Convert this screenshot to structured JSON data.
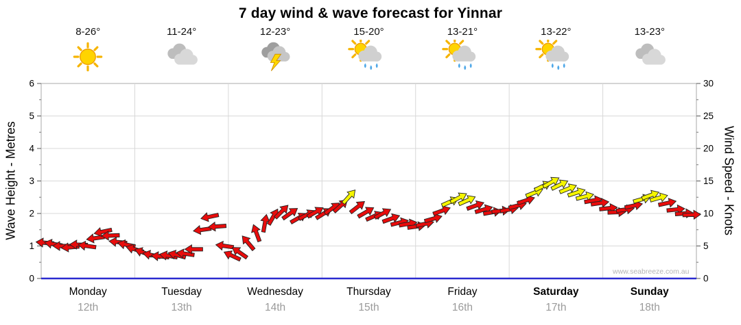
{
  "title": "7 day wind & wave forecast for Yinnar",
  "watermark": "www.seabreeze.com.au",
  "axes": {
    "left_title": "Wave Height - Metres",
    "right_title": "Wind Speed - Knots",
    "left_ticks": [
      0,
      1,
      2,
      3,
      4,
      5,
      6
    ],
    "right_ticks": [
      0,
      5,
      10,
      15,
      20,
      25,
      30
    ]
  },
  "days": [
    {
      "name": "Monday",
      "date": "12th",
      "temp": "8-26°",
      "icon": "sunny",
      "bold": false
    },
    {
      "name": "Tuesday",
      "date": "13th",
      "temp": "11-24°",
      "icon": "cloudy",
      "bold": false
    },
    {
      "name": "Wednesday",
      "date": "14th",
      "temp": "12-23°",
      "icon": "storm",
      "bold": false
    },
    {
      "name": "Thursday",
      "date": "15th",
      "temp": "15-20°",
      "icon": "sun-showers",
      "bold": false
    },
    {
      "name": "Friday",
      "date": "16th",
      "temp": "13-21°",
      "icon": "sun-showers",
      "bold": false
    },
    {
      "name": "Saturday",
      "date": "17th",
      "temp": "13-22°",
      "icon": "sun-showers",
      "bold": true
    },
    {
      "name": "Sunday",
      "date": "18th",
      "temp": "13-23°",
      "icon": "cloudy",
      "bold": true
    }
  ],
  "chart_data": {
    "type": "scatter",
    "marker": "wind-arrow",
    "x_unit": "days (0 = start of Monday, 7 = end of Sunday)",
    "y_units": {
      "wave_metres": [
        0,
        6
      ],
      "wind_knots": [
        0,
        30
      ]
    },
    "grid": true,
    "colors": {
      "r": "#e80c0c",
      "y": "#f5f500",
      "baseline": "#2a2ad0",
      "grid": "#d8d8d8",
      "border": "#a8a8a8"
    },
    "points": [
      {
        "d": 0.04,
        "kn": 5.5,
        "rot": 185,
        "c": "r"
      },
      {
        "d": 0.13,
        "kn": 5.3,
        "rot": 190,
        "c": "r"
      },
      {
        "d": 0.22,
        "kn": 5.0,
        "rot": 180,
        "c": "r"
      },
      {
        "d": 0.31,
        "kn": 4.8,
        "rot": 175,
        "c": "r"
      },
      {
        "d": 0.4,
        "kn": 5.2,
        "rot": 182,
        "c": "r"
      },
      {
        "d": 0.49,
        "kn": 5.0,
        "rot": 188,
        "c": "r"
      },
      {
        "d": 0.58,
        "kn": 6.2,
        "rot": 172,
        "c": "r"
      },
      {
        "d": 0.66,
        "kn": 7.2,
        "rot": 168,
        "c": "r"
      },
      {
        "d": 0.74,
        "kn": 6.6,
        "rot": 178,
        "c": "r"
      },
      {
        "d": 0.82,
        "kn": 5.6,
        "rot": 186,
        "c": "r"
      },
      {
        "d": 0.91,
        "kn": 5.2,
        "rot": 192,
        "c": "r"
      },
      {
        "d": 1.0,
        "kn": 4.5,
        "rot": 196,
        "c": "r"
      },
      {
        "d": 1.09,
        "kn": 4.0,
        "rot": 200,
        "c": "r"
      },
      {
        "d": 1.18,
        "kn": 3.6,
        "rot": 192,
        "c": "r"
      },
      {
        "d": 1.27,
        "kn": 3.4,
        "rot": 186,
        "c": "r"
      },
      {
        "d": 1.36,
        "kn": 3.5,
        "rot": 190,
        "c": "r"
      },
      {
        "d": 1.45,
        "kn": 3.6,
        "rot": 195,
        "c": "r"
      },
      {
        "d": 1.54,
        "kn": 3.8,
        "rot": 188,
        "c": "r"
      },
      {
        "d": 1.63,
        "kn": 4.5,
        "rot": 180,
        "c": "r"
      },
      {
        "d": 1.72,
        "kn": 7.5,
        "rot": 172,
        "c": "r"
      },
      {
        "d": 1.8,
        "kn": 9.5,
        "rot": 168,
        "c": "r"
      },
      {
        "d": 1.88,
        "kn": 8.0,
        "rot": 176,
        "c": "r"
      },
      {
        "d": 1.96,
        "kn": 5.0,
        "rot": 188,
        "c": "r"
      },
      {
        "d": 2.04,
        "kn": 3.5,
        "rot": 205,
        "c": "r"
      },
      {
        "d": 2.12,
        "kn": 4.0,
        "rot": 215,
        "c": "r"
      },
      {
        "d": 2.21,
        "kn": 5.5,
        "rot": 230,
        "c": "r"
      },
      {
        "d": 2.3,
        "kn": 7.0,
        "rot": 250,
        "c": "r"
      },
      {
        "d": 2.39,
        "kn": 8.5,
        "rot": 280,
        "c": "r"
      },
      {
        "d": 2.48,
        "kn": 9.5,
        "rot": 300,
        "c": "r"
      },
      {
        "d": 2.57,
        "kn": 10.3,
        "rot": 315,
        "c": "r"
      },
      {
        "d": 2.66,
        "kn": 10.0,
        "rot": 325,
        "c": "r"
      },
      {
        "d": 2.75,
        "kn": 9.3,
        "rot": 330,
        "c": "r"
      },
      {
        "d": 2.84,
        "kn": 9.8,
        "rot": 332,
        "c": "r"
      },
      {
        "d": 2.93,
        "kn": 10.2,
        "rot": 330,
        "c": "r"
      },
      {
        "d": 3.02,
        "kn": 10.0,
        "rot": 328,
        "c": "r"
      },
      {
        "d": 3.11,
        "kn": 10.8,
        "rot": 324,
        "c": "r"
      },
      {
        "d": 3.2,
        "kn": 11.2,
        "rot": 318,
        "c": "r"
      },
      {
        "d": 3.29,
        "kn": 12.6,
        "rot": 312,
        "c": "y"
      },
      {
        "d": 3.38,
        "kn": 11.0,
        "rot": 322,
        "c": "r"
      },
      {
        "d": 3.47,
        "kn": 10.2,
        "rot": 330,
        "c": "r"
      },
      {
        "d": 3.56,
        "kn": 9.6,
        "rot": 336,
        "c": "r"
      },
      {
        "d": 3.65,
        "kn": 10.0,
        "rot": 332,
        "c": "r"
      },
      {
        "d": 3.74,
        "kn": 9.2,
        "rot": 340,
        "c": "r"
      },
      {
        "d": 3.83,
        "kn": 8.6,
        "rot": 346,
        "c": "r"
      },
      {
        "d": 3.92,
        "kn": 8.4,
        "rot": 350,
        "c": "r"
      },
      {
        "d": 4.01,
        "kn": 8.0,
        "rot": 352,
        "c": "r"
      },
      {
        "d": 4.1,
        "kn": 8.4,
        "rot": 348,
        "c": "r"
      },
      {
        "d": 4.19,
        "kn": 9.2,
        "rot": 344,
        "c": "r"
      },
      {
        "d": 4.28,
        "kn": 10.4,
        "rot": 340,
        "c": "r"
      },
      {
        "d": 4.37,
        "kn": 11.8,
        "rot": 336,
        "c": "y"
      },
      {
        "d": 4.46,
        "kn": 12.4,
        "rot": 332,
        "c": "y"
      },
      {
        "d": 4.55,
        "kn": 12.0,
        "rot": 336,
        "c": "y"
      },
      {
        "d": 4.64,
        "kn": 11.2,
        "rot": 340,
        "c": "r"
      },
      {
        "d": 4.73,
        "kn": 10.6,
        "rot": 344,
        "c": "r"
      },
      {
        "d": 4.82,
        "kn": 10.2,
        "rot": 350,
        "c": "r"
      },
      {
        "d": 4.91,
        "kn": 10.4,
        "rot": 354,
        "c": "r"
      },
      {
        "d": 5.0,
        "kn": 10.6,
        "rot": 350,
        "c": "r"
      },
      {
        "d": 5.09,
        "kn": 11.2,
        "rot": 346,
        "c": "r"
      },
      {
        "d": 5.18,
        "kn": 12.0,
        "rot": 342,
        "c": "r"
      },
      {
        "d": 5.27,
        "kn": 13.2,
        "rot": 338,
        "c": "y"
      },
      {
        "d": 5.36,
        "kn": 14.2,
        "rot": 334,
        "c": "y"
      },
      {
        "d": 5.45,
        "kn": 14.8,
        "rot": 330,
        "c": "y"
      },
      {
        "d": 5.54,
        "kn": 14.4,
        "rot": 334,
        "c": "y"
      },
      {
        "d": 5.63,
        "kn": 13.8,
        "rot": 338,
        "c": "y"
      },
      {
        "d": 5.72,
        "kn": 13.2,
        "rot": 342,
        "c": "y"
      },
      {
        "d": 5.81,
        "kn": 12.6,
        "rot": 346,
        "c": "y"
      },
      {
        "d": 5.9,
        "kn": 12.0,
        "rot": 350,
        "c": "r"
      },
      {
        "d": 5.97,
        "kn": 11.6,
        "rot": 352,
        "c": "r"
      },
      {
        "d": 6.06,
        "kn": 10.8,
        "rot": 354,
        "c": "r"
      },
      {
        "d": 6.15,
        "kn": 10.2,
        "rot": 358,
        "c": "r"
      },
      {
        "d": 6.24,
        "kn": 10.6,
        "rot": 352,
        "c": "r"
      },
      {
        "d": 6.33,
        "kn": 11.2,
        "rot": 348,
        "c": "r"
      },
      {
        "d": 6.42,
        "kn": 12.2,
        "rot": 344,
        "c": "y"
      },
      {
        "d": 6.51,
        "kn": 12.8,
        "rot": 340,
        "c": "y"
      },
      {
        "d": 6.6,
        "kn": 12.4,
        "rot": 344,
        "c": "y"
      },
      {
        "d": 6.69,
        "kn": 11.6,
        "rot": 348,
        "c": "r"
      },
      {
        "d": 6.78,
        "kn": 10.6,
        "rot": 354,
        "c": "r"
      },
      {
        "d": 6.87,
        "kn": 10.0,
        "rot": 356,
        "c": "r"
      },
      {
        "d": 6.95,
        "kn": 9.8,
        "rot": 358,
        "c": "r"
      }
    ]
  }
}
